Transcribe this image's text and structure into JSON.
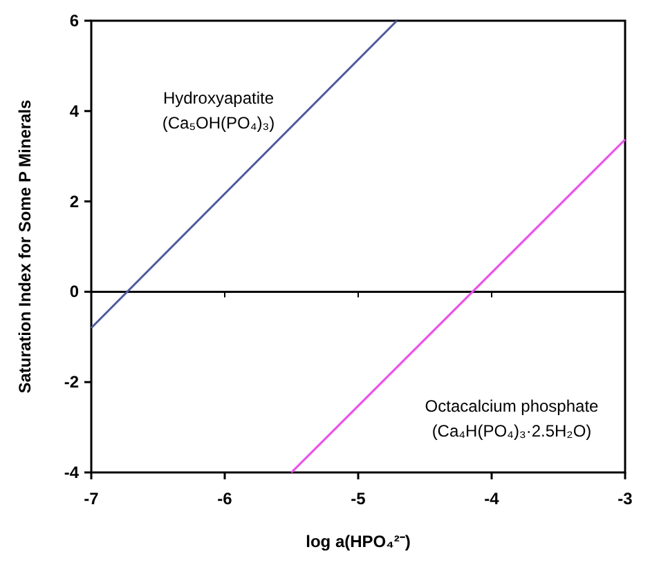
{
  "chart_data": {
    "type": "line",
    "xlabel": "log a(HPO₄²⁻)",
    "ylabel": "Saturation Index for Some P Minerals",
    "xlim": [
      -7,
      -3
    ],
    "ylim": [
      -4,
      6
    ],
    "xticks": [
      -7,
      -6,
      -5,
      -4,
      -3
    ],
    "yticks": [
      -4,
      -2,
      0,
      2,
      4,
      6
    ],
    "grid": false,
    "marker": "none",
    "line_style": "solid",
    "series": [
      {
        "name": "Hydroxyapatite",
        "color": "#4a5aa8",
        "x": [
          -7,
          -4.71
        ],
        "values": [
          -0.8,
          6
        ]
      },
      {
        "name": "Octacalcium phosphate",
        "color": "#ff40ff",
        "x": [
          -5.5,
          -3
        ],
        "values": [
          -4,
          3.37
        ]
      }
    ],
    "annotations": [
      "(Ca₅OH(PO₄)₃)",
      "(Ca₄H(PO₄)₃·2.5H₂O)"
    ],
    "ref_lines": [
      {
        "axis": "y",
        "value": 0,
        "color": "#000000",
        "line_style": "solid"
      }
    ]
  }
}
